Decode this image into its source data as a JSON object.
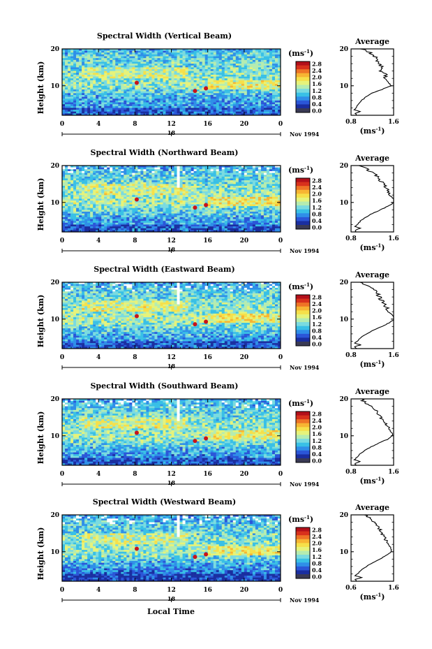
{
  "figure": {
    "xlabel": "Local Time",
    "date_label": "Nov 1994",
    "colorbar_unit": "(ms",
    "colorbar_unit_exp": "-1",
    "colorbar_unit_close": ")",
    "avg_title": "Average"
  },
  "colors": {
    "scale": [
      "#1a2ea0",
      "#2b56d8",
      "#2f8fe8",
      "#39c0e6",
      "#7adbe0",
      "#b5ecb0",
      "#e6f37a",
      "#f6e04a",
      "#f7b533",
      "#ee7426",
      "#d8311c",
      "#b3101a"
    ],
    "colorbar_bottom": "#3a3a55"
  },
  "chart_data": [
    {
      "type": "heatmap",
      "title": "Spectral Width (Vertical Beam)",
      "ylabel": "Height (km)",
      "xlabel": "Local Time",
      "x_ticks": [
        "0",
        "4",
        "8",
        "12",
        "16",
        "20",
        "0"
      ],
      "xlim": [
        0,
        24
      ],
      "y_ticks": [
        "20",
        "10"
      ],
      "ylim": [
        2,
        20
      ],
      "date_marker": "18",
      "colorbar_ticks": [
        "2.8",
        "2.4",
        "2.0",
        "1.6",
        "1.2",
        "0.8",
        "0.4",
        "0.0"
      ],
      "colorbar_range": [
        0,
        3.0
      ],
      "profile": {
        "title": "Average",
        "x_ticks": [
          "0.8",
          "1.6"
        ],
        "xlim": [
          0.8,
          1.6
        ],
        "y_ticks": [
          "20",
          "10"
        ],
        "ylim": [
          2,
          20
        ],
        "height_km": [
          2,
          2.5,
          3,
          3.5,
          4,
          5,
          6,
          7,
          8,
          9,
          10,
          11,
          12,
          13,
          14,
          15,
          16,
          17,
          18,
          19,
          20
        ],
        "width_ms": [
          0.9,
          0.88,
          0.97,
          0.86,
          0.9,
          0.93,
          1.0,
          1.08,
          1.2,
          1.38,
          1.55,
          1.5,
          1.44,
          1.47,
          1.36,
          1.4,
          1.33,
          1.3,
          1.25,
          1.15,
          1.0
        ]
      }
    },
    {
      "type": "heatmap",
      "title": "Spectral Width (Northward Beam)",
      "ylabel": "Height (km)",
      "xlabel": "Local Time",
      "x_ticks": [
        "0",
        "4",
        "8",
        "12",
        "16",
        "20",
        "0"
      ],
      "xlim": [
        0,
        24
      ],
      "y_ticks": [
        "20",
        "10"
      ],
      "ylim": [
        2,
        20
      ],
      "date_marker": "18",
      "colorbar_ticks": [
        "2.8",
        "2.4",
        "2.0",
        "1.6",
        "1.2",
        "0.8",
        "0.4",
        "0.0"
      ],
      "colorbar_range": [
        0,
        3.0
      ],
      "profile": {
        "title": "Average",
        "x_ticks": [
          "0.8",
          "1.6"
        ],
        "xlim": [
          0.8,
          1.6
        ],
        "y_ticks": [
          "20",
          "10"
        ],
        "ylim": [
          2,
          20
        ],
        "height_km": [
          2,
          2.5,
          3,
          3.5,
          4,
          5,
          6,
          7,
          8,
          9,
          10,
          11,
          12,
          13,
          14,
          15,
          16,
          17,
          18,
          19,
          20
        ],
        "width_ms": [
          0.9,
          0.88,
          0.98,
          0.87,
          0.92,
          0.98,
          1.08,
          1.2,
          1.35,
          1.5,
          1.62,
          1.6,
          1.52,
          1.5,
          1.45,
          1.4,
          1.35,
          1.3,
          1.2,
          1.1,
          0.98
        ]
      }
    },
    {
      "type": "heatmap",
      "title": "Spectral Width (Eastward Beam)",
      "ylabel": "Height (km)",
      "xlabel": "Local Time",
      "x_ticks": [
        "0",
        "4",
        "8",
        "12",
        "16",
        "20",
        "0"
      ],
      "xlim": [
        0,
        24
      ],
      "y_ticks": [
        "20",
        "10"
      ],
      "ylim": [
        2,
        20
      ],
      "date_marker": "18",
      "colorbar_ticks": [
        "2.8",
        "2.4",
        "2.0",
        "1.6",
        "1.2",
        "0.8",
        "0.4",
        "0.0"
      ],
      "colorbar_range": [
        0,
        3.0
      ],
      "profile": {
        "title": "Average",
        "x_ticks": [
          "0.8",
          "1.6"
        ],
        "xlim": [
          0.8,
          1.6
        ],
        "y_ticks": [
          "20",
          "10"
        ],
        "ylim": [
          2,
          20
        ],
        "height_km": [
          2,
          2.5,
          3,
          3.5,
          4,
          5,
          6,
          7,
          8,
          9,
          10,
          11,
          12,
          13,
          14,
          15,
          16,
          17,
          18,
          19,
          20
        ],
        "width_ms": [
          0.9,
          0.87,
          0.98,
          0.86,
          0.92,
          0.98,
          1.1,
          1.22,
          1.38,
          1.52,
          1.62,
          1.58,
          1.5,
          1.48,
          1.42,
          1.38,
          1.33,
          1.3,
          1.22,
          1.12,
          1.0
        ]
      }
    },
    {
      "type": "heatmap",
      "title": "Spectral Width (Southward Beam)",
      "ylabel": "Height (km)",
      "xlabel": "Local Time",
      "x_ticks": [
        "0",
        "4",
        "8",
        "12",
        "16",
        "20",
        "0"
      ],
      "xlim": [
        0,
        24
      ],
      "y_ticks": [
        "20",
        "10"
      ],
      "ylim": [
        2,
        20
      ],
      "date_marker": "18",
      "colorbar_ticks": [
        "2.8",
        "2.4",
        "2.0",
        "1.6",
        "1.2",
        "0.8",
        "0.4",
        "0.0"
      ],
      "colorbar_range": [
        0,
        3.0
      ],
      "profile": {
        "title": "Average",
        "x_ticks": [
          "0.8",
          "1.6"
        ],
        "xlim": [
          0.8,
          1.6
        ],
        "y_ticks": [
          "20",
          "10"
        ],
        "ylim": [
          2,
          20
        ],
        "height_km": [
          2,
          2.5,
          3,
          3.5,
          4,
          5,
          6,
          7,
          8,
          9,
          10,
          11,
          12,
          13,
          14,
          15,
          16,
          17,
          18,
          19,
          20
        ],
        "width_ms": [
          0.9,
          0.87,
          0.97,
          0.86,
          0.9,
          0.96,
          1.06,
          1.18,
          1.32,
          1.48,
          1.58,
          1.56,
          1.5,
          1.46,
          1.4,
          1.36,
          1.3,
          1.26,
          1.18,
          1.08,
          0.98
        ]
      }
    },
    {
      "type": "heatmap",
      "title": "Spectral Width (Westward Beam)",
      "ylabel": "Height (km)",
      "xlabel": "Local Time",
      "x_ticks": [
        "0",
        "4",
        "8",
        "12",
        "16",
        "20",
        "0"
      ],
      "xlim": [
        0,
        24
      ],
      "y_ticks": [
        "20",
        "10"
      ],
      "ylim": [
        2,
        20
      ],
      "date_marker": "18",
      "colorbar_ticks": [
        "2.8",
        "2.4",
        "2.0",
        "1.6",
        "1.2",
        "0.8",
        "0.4",
        "0.0"
      ],
      "colorbar_range": [
        0,
        3.0
      ],
      "profile": {
        "title": "Average",
        "x_ticks": [
          "0.6",
          "1.6"
        ],
        "xlim": [
          0.6,
          1.6
        ],
        "y_ticks": [
          "20",
          "10"
        ],
        "ylim": [
          2,
          20
        ],
        "height_km": [
          2,
          2.5,
          3,
          3.5,
          4,
          5,
          6,
          7,
          8,
          9,
          10,
          11,
          12,
          13,
          14,
          15,
          16,
          17,
          18,
          19,
          20
        ],
        "width_ms": [
          0.72,
          0.7,
          0.86,
          0.7,
          0.75,
          0.84,
          0.96,
          1.1,
          1.28,
          1.42,
          1.55,
          1.54,
          1.47,
          1.43,
          1.37,
          1.33,
          1.28,
          1.24,
          1.15,
          1.05,
          0.95
        ]
      }
    }
  ]
}
